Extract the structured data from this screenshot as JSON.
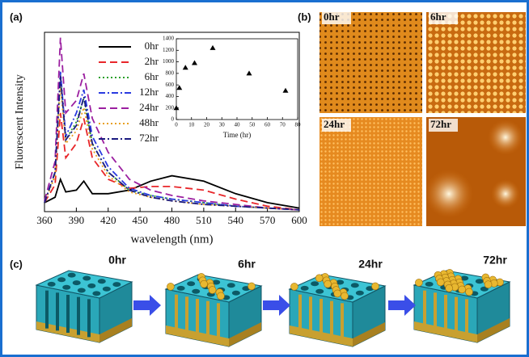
{
  "panel_labels": [
    "(a)",
    "(b)",
    "(c)"
  ],
  "chart_data": [
    {
      "type": "line",
      "x_label": "wavelength (nm)",
      "y_label": "Fluorescent Intensity",
      "x": [
        360,
        370,
        375,
        380,
        390,
        397,
        405,
        420,
        440,
        460,
        480,
        510,
        540,
        570,
        600
      ],
      "xlim": [
        360,
        600
      ],
      "xticks": [
        360,
        390,
        420,
        450,
        480,
        510,
        540,
        570,
        600
      ],
      "ylim": [
        0,
        100
      ],
      "series": [
        {
          "name": "0hr",
          "color": "#000000",
          "dash": "solid",
          "values": [
            5,
            8,
            18,
            11,
            12,
            17,
            10,
            10,
            12,
            17,
            20,
            17,
            10,
            5,
            2
          ]
        },
        {
          "name": "2hr",
          "color": "#e8262a",
          "dash": "dashed",
          "values": [
            5,
            15,
            55,
            30,
            38,
            52,
            30,
            18,
            13,
            14,
            14,
            12,
            7,
            3,
            1
          ]
        },
        {
          "name": "6hr",
          "color": "#2aa02a",
          "dash": "dotted",
          "values": [
            5,
            20,
            75,
            40,
            50,
            63,
            38,
            22,
            12,
            9,
            7,
            5,
            3,
            2,
            1
          ]
        },
        {
          "name": "12hr",
          "color": "#2a3ae0",
          "dash": "dashdot",
          "values": [
            5,
            22,
            78,
            42,
            55,
            68,
            42,
            25,
            13,
            9,
            7,
            5,
            3,
            2,
            1
          ]
        },
        {
          "name": "24hr",
          "color": "#9b1fa0",
          "dash": "dashed",
          "values": [
            6,
            28,
            97,
            55,
            62,
            77,
            52,
            33,
            18,
            12,
            9,
            6,
            4,
            2,
            1
          ]
        },
        {
          "name": "48hr",
          "color": "#e8a020",
          "dash": "dotted",
          "values": [
            5,
            20,
            70,
            38,
            45,
            58,
            35,
            20,
            11,
            8,
            6,
            4,
            3,
            2,
            1
          ]
        },
        {
          "name": "72hr",
          "color": "#1a1a80",
          "dash": "dashdot",
          "values": [
            5,
            22,
            76,
            40,
            48,
            64,
            38,
            22,
            12,
            8,
            6,
            4,
            3,
            2,
            1
          ]
        }
      ]
    },
    {
      "type": "scatter",
      "x_label": "Time (hr)",
      "color": "#000000",
      "x": [
        0,
        2,
        6,
        12,
        24,
        48,
        72
      ],
      "values": [
        200,
        550,
        900,
        980,
        1240,
        800,
        500
      ],
      "xlim": [
        0,
        80
      ],
      "xticks": [
        0,
        10,
        20,
        30,
        40,
        50,
        60,
        70,
        80
      ],
      "ylim": [
        0,
        1400
      ],
      "yticks": [
        0,
        200,
        400,
        600,
        800,
        1000,
        1200,
        1400
      ]
    }
  ],
  "afm_images": [
    "0hr",
    "6hr",
    "24hr",
    "72hr"
  ],
  "diagram": {
    "stages": [
      "0hr",
      "6hr",
      "24hr",
      "72hr"
    ]
  }
}
